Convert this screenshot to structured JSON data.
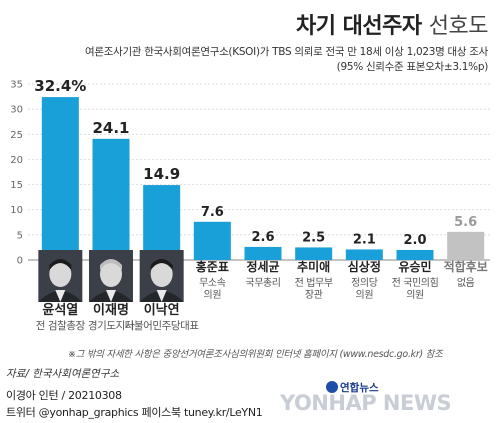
{
  "title": "차기 대선주자",
  "title_suffix": "선호도",
  "subtitle_line1": "여론조사기관 한국사회여론연구소(KSOI)가 TBS 의뢰로 전국 만 18세 이상 1,023명 대상 조사",
  "subtitle_line2": "(95% 신뢰수준 표본오차±3.1%p)",
  "footnote": "※그 밖의 자세한 사항은 중앙선거여론조사심의위원회 인터넷 홈페이지 (www.nesdc.go.kr) 참조",
  "source": "자료/ 한국사회여론연구소",
  "credit_line1": "이경아 인턴 / 20210308",
  "credit_line2": "트위터 @yonhap_graphics  페이스북 tuney.kr/LeYN1",
  "logo_small": "연합뉴스",
  "logo_big": "YONHAP NEWS",
  "colors": {
    "primary": "#1aa0d8",
    "other": "#c2c2c2",
    "grid": "#cfcfcf"
  },
  "chart_data": {
    "type": "bar",
    "ylim": [
      0,
      35
    ],
    "yticks": [
      0,
      5,
      10,
      15,
      20,
      25,
      30,
      35
    ],
    "categories": [
      "윤석열",
      "이재명",
      "이낙연",
      "홍준표",
      "정세균",
      "추미애",
      "심상정",
      "유승민",
      "적합후보"
    ],
    "category_sublabels": [
      "전 검찰총장",
      "경기도지사",
      "더불어민주당대표",
      "무소속\n의원",
      "국무총리",
      "전 법무부\n장관",
      "정의당\n의원",
      "전 국민의힘\n의원",
      "없음"
    ],
    "values": [
      32.4,
      24.1,
      14.9,
      7.6,
      2.6,
      2.5,
      2.1,
      2.0,
      5.6
    ],
    "value_labels": [
      "32.4%",
      "24.1",
      "14.9",
      "7.6",
      "2.6",
      "2.5",
      "2.1",
      "2.0",
      "5.6"
    ],
    "bar_colors": [
      "primary",
      "primary",
      "primary",
      "primary",
      "primary",
      "primary",
      "primary",
      "primary",
      "other"
    ],
    "photos": [
      "avatar-yoon-icon",
      "avatar-lee-jm-icon",
      "avatar-lee-ny-icon"
    ]
  }
}
